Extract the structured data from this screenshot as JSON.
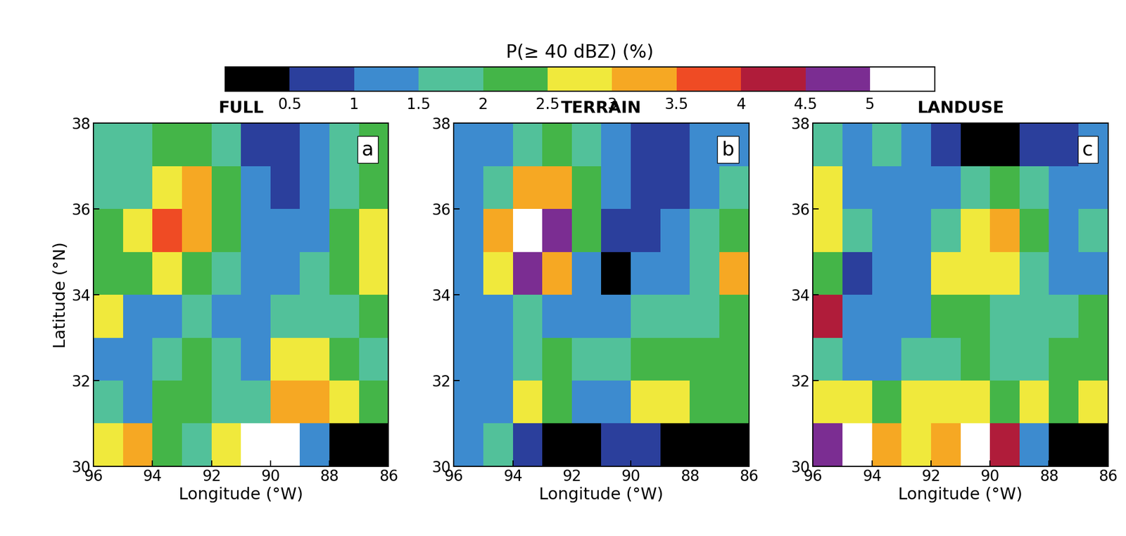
{
  "colorbar": {
    "title": "P(≥ 40 dBZ) (%)",
    "range": [
      0,
      5.5
    ],
    "ticks": [
      0.5,
      1,
      1.5,
      2,
      2.5,
      3,
      3.5,
      4,
      4.5,
      5
    ],
    "colors": [
      "#000000",
      "#2b3f9c",
      "#3d8bcf",
      "#52c19a",
      "#44b548",
      "#f0e93c",
      "#f6a823",
      "#ef4b24",
      "#b01c3a",
      "#7b2d92",
      "#ffffff"
    ]
  },
  "chart_data": [
    {
      "type": "heatmap",
      "title": "FULL",
      "panel": "a",
      "xlabel": "Longitude (°W)",
      "ylabel": "Latitude (°N)",
      "xlim": [
        96,
        86
      ],
      "ylim": [
        30,
        38
      ],
      "xticks": [
        96,
        94,
        92,
        90,
        88,
        86
      ],
      "yticks": [
        30,
        32,
        34,
        36,
        38
      ],
      "x": [
        95.5,
        94.5,
        93.5,
        92.5,
        91.5,
        90.5,
        89.5,
        88.5,
        87.5,
        86.5
      ],
      "y": [
        30.5,
        31.5,
        32.5,
        33.5,
        34.5,
        35.5,
        36.5,
        37.5
      ],
      "cells": [
        [
          2.5,
          3,
          2,
          1.5,
          2.5,
          5.5,
          5,
          1,
          0.2,
          0.2
        ],
        [
          1.5,
          1.2,
          2,
          2,
          1.5,
          1.5,
          3,
          3,
          2.5,
          2
        ],
        [
          1,
          1.2,
          1.5,
          2,
          1.5,
          1.2,
          2.5,
          2.5,
          2,
          1.5
        ],
        [
          2.5,
          1.2,
          1.2,
          1.5,
          1.2,
          1,
          1.5,
          1.8,
          1.8,
          2
        ],
        [
          2,
          2,
          2.5,
          2,
          1.5,
          1,
          1.2,
          1.5,
          2,
          2.5
        ],
        [
          2,
          2.5,
          3.5,
          3,
          2,
          1.2,
          1,
          1.2,
          2,
          2.5
        ],
        [
          1.5,
          1.5,
          2.5,
          3,
          2,
          1,
          0.7,
          1,
          1.5,
          2
        ],
        [
          1.5,
          1.8,
          2,
          2,
          1.5,
          0.8,
          0.5,
          1,
          1.5,
          2
        ]
      ]
    },
    {
      "type": "heatmap",
      "title": "TERRAIN",
      "panel": "b",
      "xlabel": "Longitude (°W)",
      "xlim": [
        96,
        86
      ],
      "ylim": [
        30,
        38
      ],
      "xticks": [
        96,
        94,
        92,
        90,
        88,
        86
      ],
      "yticks": [
        30,
        32,
        34,
        36,
        38
      ],
      "x": [
        95.5,
        94.5,
        93.5,
        92.5,
        91.5,
        90.5,
        89.5,
        88.5,
        87.5,
        86.5
      ],
      "y": [
        30.5,
        31.5,
        32.5,
        33.5,
        34.5,
        35.5,
        36.5,
        37.5
      ],
      "cells": [
        [
          1,
          1.5,
          0.5,
          0.3,
          0.3,
          0.5,
          0.5,
          0.3,
          0.3,
          0.3
        ],
        [
          1,
          1.2,
          2.5,
          2,
          1,
          1.2,
          2.5,
          2.5,
          2,
          2
        ],
        [
          1,
          1,
          1.8,
          2,
          1.5,
          1.5,
          2,
          2,
          2,
          2
        ],
        [
          1,
          1.2,
          1.5,
          1.2,
          1,
          1,
          1.5,
          1.5,
          1.5,
          2
        ],
        [
          1.2,
          2.5,
          4.5,
          3,
          1,
          0.3,
          1,
          1.2,
          1.5,
          3
        ],
        [
          1.2,
          3,
          5,
          4.5,
          2,
          0.5,
          0.8,
          1.2,
          1.5,
          2
        ],
        [
          1,
          1.5,
          3,
          3,
          2,
          1,
          0.5,
          0.8,
          1.2,
          1.5
        ],
        [
          1,
          1,
          1.5,
          2,
          1.5,
          1,
          0.5,
          0.8,
          1.2,
          1.2
        ]
      ]
    },
    {
      "type": "heatmap",
      "title": "LANDUSE",
      "panel": "c",
      "xlabel": "Longitude (°W)",
      "xlim": [
        96,
        86
      ],
      "ylim": [
        30,
        38
      ],
      "xticks": [
        96,
        94,
        92,
        90,
        88,
        86
      ],
      "yticks": [
        30,
        32,
        34,
        36,
        38
      ],
      "x": [
        95.5,
        94.5,
        93.5,
        92.5,
        91.5,
        90.5,
        89.5,
        88.5,
        87.5,
        86.5
      ],
      "y": [
        30.5,
        31.5,
        32.5,
        33.5,
        34.5,
        35.5,
        36.5,
        37.5
      ],
      "cells": [
        [
          4.5,
          5,
          3,
          2.5,
          3,
          5.5,
          4,
          1,
          0.2,
          0.2
        ],
        [
          2.5,
          2.5,
          2,
          2.5,
          2.5,
          2.5,
          2,
          2.5,
          2,
          2.5
        ],
        [
          1.5,
          1.2,
          1.2,
          1.5,
          1.8,
          2,
          1.5,
          1.5,
          2,
          2
        ],
        [
          4,
          1.2,
          1,
          1,
          2,
          2,
          1.5,
          1.5,
          1.5,
          2
        ],
        [
          2,
          0.5,
          1,
          1.2,
          2.5,
          2.5,
          2.5,
          1.5,
          1.2,
          1.2
        ],
        [
          2.5,
          1.5,
          1,
          1,
          1.5,
          2.5,
          3,
          2,
          1.2,
          1.5
        ],
        [
          2.5,
          1.2,
          1,
          1,
          1,
          1.5,
          2,
          1.5,
          1,
          1.2
        ],
        [
          1.5,
          1.2,
          1.5,
          1,
          0.5,
          0.3,
          0.3,
          0.5,
          0.8,
          1
        ]
      ]
    }
  ]
}
